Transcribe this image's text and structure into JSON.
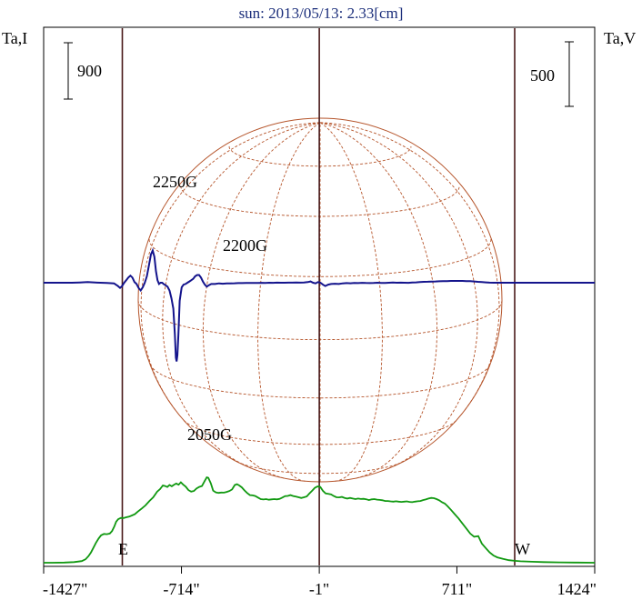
{
  "chart_data": {
    "type": "line",
    "title": "sun: 2013/05/13: 2.33[cm]",
    "left_axis_label": "Ta,I",
    "right_axis_label": "Ta,V",
    "left_scale_bar": "900",
    "right_scale_bar": "500",
    "x_ticks": [
      {
        "value": -1427,
        "label": "-1427\""
      },
      {
        "value": -714,
        "label": "-714\""
      },
      {
        "value": -1,
        "label": "-1\""
      },
      {
        "value": 711,
        "label": "711\""
      },
      {
        "value": 1424,
        "label": "1424\""
      }
    ],
    "xlim": [
      -1427,
      1424
    ],
    "vertical_markers": [
      -1020,
      -1,
      1010
    ],
    "limb_labels": {
      "east": "E",
      "west": "W"
    },
    "annotations": [
      {
        "text": "2250G",
        "x": -714
      },
      {
        "text": "2200G",
        "x": -364
      },
      {
        "text": "2050G",
        "x": -560
      }
    ],
    "series": [
      {
        "color": "#119911",
        "points": [
          [
            -1427,
            14
          ],
          [
            -1380,
            15
          ],
          [
            -1320,
            18
          ],
          [
            -1270,
            25
          ],
          [
            -1230,
            40
          ],
          [
            -1210,
            70
          ],
          [
            -1195,
            120
          ],
          [
            -1182,
            180
          ],
          [
            -1170,
            250
          ],
          [
            -1157,
            330
          ],
          [
            -1143,
            400
          ],
          [
            -1130,
            452
          ],
          [
            -1115,
            475
          ],
          [
            -1100,
            470
          ],
          [
            -1085,
            480
          ],
          [
            -1073,
            520
          ],
          [
            -1062,
            590
          ],
          [
            -1052,
            668
          ],
          [
            -1041,
            710
          ],
          [
            -1027,
            730
          ],
          [
            -1013,
            727
          ],
          [
            -1000,
            740
          ],
          [
            -985,
            750
          ],
          [
            -970,
            770
          ],
          [
            -955,
            790
          ],
          [
            -940,
            830
          ],
          [
            -920,
            880
          ],
          [
            -900,
            930
          ],
          [
            -880,
            1000
          ],
          [
            -860,
            1060
          ],
          [
            -840,
            1150
          ],
          [
            -825,
            1190
          ],
          [
            -810,
            1248
          ],
          [
            -799,
            1240
          ],
          [
            -787,
            1223
          ],
          [
            -776,
            1255
          ],
          [
            -764,
            1235
          ],
          [
            -752,
            1262
          ],
          [
            -741,
            1279
          ],
          [
            -729,
            1260
          ],
          [
            -717,
            1299
          ],
          [
            -706,
            1265
          ],
          [
            -692,
            1230
          ],
          [
            -678,
            1175
          ],
          [
            -664,
            1150
          ],
          [
            -650,
            1160
          ],
          [
            -636,
            1200
          ],
          [
            -622,
            1225
          ],
          [
            -608,
            1240
          ],
          [
            -594,
            1320
          ],
          [
            -583,
            1378
          ],
          [
            -575,
            1370
          ],
          [
            -562,
            1280
          ],
          [
            -550,
            1165
          ],
          [
            -536,
            1138
          ],
          [
            -522,
            1130
          ],
          [
            -508,
            1135
          ],
          [
            -494,
            1133
          ],
          [
            -480,
            1145
          ],
          [
            -466,
            1160
          ],
          [
            -452,
            1185
          ],
          [
            -438,
            1255
          ],
          [
            -427,
            1268
          ],
          [
            -416,
            1250
          ],
          [
            -402,
            1218
          ],
          [
            -388,
            1170
          ],
          [
            -374,
            1128
          ],
          [
            -360,
            1095
          ],
          [
            -346,
            1090
          ],
          [
            -332,
            1080
          ],
          [
            -318,
            1055
          ],
          [
            -304,
            1030
          ],
          [
            -290,
            1025
          ],
          [
            -276,
            1030
          ],
          [
            -262,
            1020
          ],
          [
            -248,
            1027
          ],
          [
            -234,
            1030
          ],
          [
            -220,
            1027
          ],
          [
            -206,
            1034
          ],
          [
            -192,
            1055
          ],
          [
            -178,
            1078
          ],
          [
            -164,
            1082
          ],
          [
            -150,
            1095
          ],
          [
            -136,
            1080
          ],
          [
            -122,
            1070
          ],
          [
            -108,
            1060
          ],
          [
            -94,
            1048
          ],
          [
            -80,
            1060
          ],
          [
            -66,
            1073
          ],
          [
            -52,
            1120
          ],
          [
            -38,
            1163
          ],
          [
            -24,
            1210
          ],
          [
            -10,
            1233
          ],
          [
            4,
            1225
          ],
          [
            18,
            1163
          ],
          [
            32,
            1120
          ],
          [
            46,
            1115
          ],
          [
            60,
            1105
          ],
          [
            74,
            1080
          ],
          [
            88,
            1060
          ],
          [
            102,
            1058
          ],
          [
            116,
            1065
          ],
          [
            130,
            1050
          ],
          [
            144,
            1040
          ],
          [
            158,
            1050
          ],
          [
            172,
            1040
          ],
          [
            186,
            1030
          ],
          [
            200,
            1040
          ],
          [
            214,
            1032
          ],
          [
            228,
            1035
          ],
          [
            242,
            1028
          ],
          [
            256,
            1015
          ],
          [
            270,
            1026
          ],
          [
            284,
            1030
          ],
          [
            298,
            1022
          ],
          [
            312,
            1018
          ],
          [
            326,
            1012
          ],
          [
            340,
            1000
          ],
          [
            354,
            1000
          ],
          [
            368,
            995
          ],
          [
            382,
            990
          ],
          [
            396,
            996
          ],
          [
            410,
            990
          ],
          [
            424,
            985
          ],
          [
            438,
            990
          ],
          [
            452,
            995
          ],
          [
            466,
            985
          ],
          [
            480,
            982
          ],
          [
            494,
            990
          ],
          [
            508,
            996
          ],
          [
            522,
            1000
          ],
          [
            536,
            1015
          ],
          [
            550,
            1025
          ],
          [
            564,
            1040
          ],
          [
            578,
            1050
          ],
          [
            592,
            1045
          ],
          [
            606,
            1030
          ],
          [
            620,
            1010
          ],
          [
            634,
            980
          ],
          [
            648,
            960
          ],
          [
            662,
            920
          ],
          [
            680,
            860
          ],
          [
            700,
            790
          ],
          [
            720,
            720
          ],
          [
            740,
            640
          ],
          [
            760,
            560
          ],
          [
            780,
            480
          ],
          [
            800,
            430
          ],
          [
            822,
            440
          ],
          [
            840,
            320
          ],
          [
            860,
            250
          ],
          [
            880,
            180
          ],
          [
            900,
            130
          ],
          [
            920,
            100
          ],
          [
            950,
            75
          ],
          [
            980,
            55
          ],
          [
            1010,
            45
          ],
          [
            1040,
            38
          ],
          [
            1100,
            30
          ],
          [
            1160,
            24
          ],
          [
            1240,
            20
          ],
          [
            1320,
            17
          ],
          [
            1424,
            14
          ]
        ]
      },
      {
        "color": "#14148c",
        "points": [
          [
            -1427,
            0
          ],
          [
            -1280,
            0
          ],
          [
            -1240,
            2
          ],
          [
            -1200,
            5
          ],
          [
            -1150,
            1
          ],
          [
            -1100,
            -2
          ],
          [
            -1063,
            -5
          ],
          [
            -1043,
            -25
          ],
          [
            -1032,
            -40
          ],
          [
            -1021,
            -25
          ],
          [
            -1010,
            0
          ],
          [
            -1000,
            20
          ],
          [
            -989,
            40
          ],
          [
            -978,
            55
          ],
          [
            -968,
            40
          ],
          [
            -957,
            5
          ],
          [
            -946,
            -10
          ],
          [
            -936,
            -40
          ],
          [
            -925,
            -60
          ],
          [
            -914,
            -35
          ],
          [
            -904,
            0
          ],
          [
            -893,
            50
          ],
          [
            -882,
            135
          ],
          [
            -872,
            220
          ],
          [
            -863,
            250
          ],
          [
            -854,
            200
          ],
          [
            -846,
            90
          ],
          [
            -838,
            20
          ],
          [
            -830,
            -10
          ],
          [
            -822,
            0
          ],
          [
            -814,
            0
          ],
          [
            -806,
            -10
          ],
          [
            -796,
            -20
          ],
          [
            -786,
            -30
          ],
          [
            -776,
            -60
          ],
          [
            -766,
            -120
          ],
          [
            -756,
            -200
          ],
          [
            -748,
            -400
          ],
          [
            -743,
            -580
          ],
          [
            -739,
            -610
          ],
          [
            -735,
            -560
          ],
          [
            -730,
            -400
          ],
          [
            -723,
            -140
          ],
          [
            -713,
            -35
          ],
          [
            -703,
            -15
          ],
          [
            -693,
            -10
          ],
          [
            -683,
            0
          ],
          [
            -673,
            10
          ],
          [
            -663,
            20
          ],
          [
            -653,
            30
          ],
          [
            -643,
            50
          ],
          [
            -633,
            60
          ],
          [
            -623,
            60
          ],
          [
            -613,
            40
          ],
          [
            -603,
            10
          ],
          [
            -593,
            -15
          ],
          [
            -583,
            -30
          ],
          [
            -573,
            -20
          ],
          [
            -560,
            -10
          ],
          [
            -540,
            -10
          ],
          [
            -520,
            -5
          ],
          [
            -500,
            -8
          ],
          [
            -480,
            -5
          ],
          [
            -460,
            -5
          ],
          [
            -440,
            -4
          ],
          [
            -420,
            -3
          ],
          [
            -400,
            -3
          ],
          [
            -380,
            -2
          ],
          [
            -360,
            -2
          ],
          [
            -340,
            -2
          ],
          [
            -320,
            -2
          ],
          [
            -300,
            -1
          ],
          [
            -280,
            -2
          ],
          [
            -260,
            0
          ],
          [
            -240,
            -1
          ],
          [
            -220,
            1
          ],
          [
            -200,
            0
          ],
          [
            -180,
            0
          ],
          [
            -160,
            1
          ],
          [
            -140,
            1
          ],
          [
            -120,
            2
          ],
          [
            -100,
            1
          ],
          [
            -80,
            2
          ],
          [
            -60,
            5
          ],
          [
            -46,
            10
          ],
          [
            -33,
            0
          ],
          [
            -20,
            -5
          ],
          [
            -8,
            5
          ],
          [
            5,
            0
          ],
          [
            18,
            -15
          ],
          [
            30,
            -25
          ],
          [
            45,
            -15
          ],
          [
            60,
            -10
          ],
          [
            80,
            -8
          ],
          [
            100,
            -10
          ],
          [
            120,
            -5
          ],
          [
            140,
            -3
          ],
          [
            160,
            -4
          ],
          [
            180,
            -2
          ],
          [
            200,
            -3
          ],
          [
            220,
            -1
          ],
          [
            240,
            -2
          ],
          [
            260,
            -3
          ],
          [
            280,
            -2
          ],
          [
            300,
            0
          ],
          [
            320,
            -2
          ],
          [
            340,
            -2
          ],
          [
            360,
            0
          ],
          [
            380,
            2
          ],
          [
            400,
            0
          ],
          [
            420,
            1
          ],
          [
            440,
            0
          ],
          [
            460,
            -1
          ],
          [
            480,
            2
          ],
          [
            500,
            3
          ],
          [
            520,
            5
          ],
          [
            540,
            7
          ],
          [
            560,
            8
          ],
          [
            580,
            9
          ],
          [
            600,
            10
          ],
          [
            620,
            11
          ],
          [
            640,
            12
          ],
          [
            660,
            13
          ],
          [
            680,
            14
          ],
          [
            700,
            14
          ],
          [
            720,
            14
          ],
          [
            740,
            14
          ],
          [
            760,
            13
          ],
          [
            780,
            12
          ],
          [
            800,
            10
          ],
          [
            820,
            7
          ],
          [
            840,
            5
          ],
          [
            860,
            3
          ],
          [
            880,
            1
          ],
          [
            900,
            0
          ],
          [
            1000,
            0
          ],
          [
            1100,
            0
          ],
          [
            1200,
            0
          ],
          [
            1300,
            0
          ],
          [
            1424,
            0
          ]
        ]
      }
    ]
  }
}
